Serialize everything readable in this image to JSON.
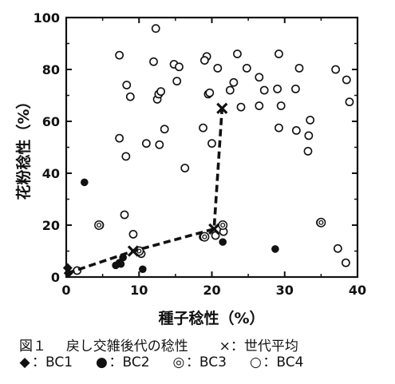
{
  "chart_data": {
    "type": "scatter",
    "title": "",
    "xlabel": "種子稔性（%）",
    "ylabel": "花粉稔性（%）",
    "xlim": [
      0,
      40
    ],
    "ylim": [
      0,
      100
    ],
    "x_ticks": [
      "0",
      "10",
      "20",
      "30",
      "40"
    ],
    "y_ticks": [
      "0",
      "20",
      "40",
      "60",
      "80",
      "100"
    ],
    "grid": false,
    "series": [
      {
        "name": "BC1",
        "marker": "diamond",
        "points": [
          [
            0.2,
            3.5
          ],
          [
            0.3,
            1.5
          ]
        ]
      },
      {
        "name": "BC2",
        "marker": "filled-circle",
        "points": [
          [
            2.5,
            36.5
          ],
          [
            6.8,
            4.5
          ],
          [
            7.3,
            5.5
          ],
          [
            7.5,
            5.0
          ],
          [
            7.8,
            7.5
          ],
          [
            10.5,
            3.0
          ],
          [
            21.5,
            13.5
          ],
          [
            28.7,
            10.8
          ]
        ]
      },
      {
        "name": "BC3",
        "marker": "double-circle",
        "points": [
          [
            4.5,
            20.0
          ],
          [
            10.0,
            10.0
          ],
          [
            19.0,
            15.5
          ],
          [
            21.5,
            20.0
          ],
          [
            35.0,
            21.0
          ]
        ]
      },
      {
        "name": "BC4",
        "marker": "open-circle",
        "points": [
          [
            12.3,
            95.8
          ],
          [
            7.3,
            85.5
          ],
          [
            12.0,
            83.0
          ],
          [
            14.8,
            82.0
          ],
          [
            15.5,
            81.0
          ],
          [
            19.3,
            85.0
          ],
          [
            19.0,
            83.5
          ],
          [
            20.8,
            80.5
          ],
          [
            23.5,
            86.0
          ],
          [
            24.8,
            80.5
          ],
          [
            26.5,
            77.0
          ],
          [
            29.2,
            86.0
          ],
          [
            32.0,
            80.5
          ],
          [
            37.0,
            80.0
          ],
          [
            38.5,
            76.0
          ],
          [
            38.9,
            67.5
          ],
          [
            8.3,
            74.0
          ],
          [
            8.8,
            69.5
          ],
          [
            15.2,
            75.5
          ],
          [
            12.5,
            68.5
          ],
          [
            12.7,
            70.5
          ],
          [
            13.0,
            71.5
          ],
          [
            19.5,
            70.5
          ],
          [
            19.7,
            71.0
          ],
          [
            22.5,
            72.0
          ],
          [
            23.0,
            75.0
          ],
          [
            24.0,
            65.5
          ],
          [
            27.2,
            72.0
          ],
          [
            29.0,
            72.5
          ],
          [
            31.5,
            72.5
          ],
          [
            26.5,
            66.0
          ],
          [
            29.5,
            66.0
          ],
          [
            13.5,
            57.0
          ],
          [
            18.8,
            57.5
          ],
          [
            29.2,
            57.5
          ],
          [
            31.6,
            56.5
          ],
          [
            33.3,
            54.5
          ],
          [
            33.5,
            60.5
          ],
          [
            33.2,
            48.5
          ],
          [
            7.3,
            53.5
          ],
          [
            11.0,
            51.5
          ],
          [
            12.8,
            51.0
          ],
          [
            20.0,
            51.5
          ],
          [
            8.2,
            46.5
          ],
          [
            16.3,
            42.0
          ],
          [
            8.0,
            24.0
          ],
          [
            4.6,
            20.0
          ],
          [
            9.2,
            16.5
          ],
          [
            18.8,
            15.5
          ],
          [
            20.5,
            16.0
          ],
          [
            21.6,
            17.5
          ],
          [
            10.3,
            9.0
          ],
          [
            1.5,
            2.5
          ],
          [
            37.3,
            11.0
          ],
          [
            38.4,
            5.5
          ],
          [
            34.9,
            21.0
          ]
        ]
      },
      {
        "name": "世代平均",
        "marker": "cross",
        "line": "dashed",
        "points": [
          [
            0.2,
            1.5
          ],
          [
            9.2,
            10.0
          ],
          [
            20.3,
            18.5
          ],
          [
            21.4,
            65.0
          ]
        ]
      }
    ]
  },
  "caption": {
    "figure_label": "図１",
    "title": "戻し交雑後代の稔性",
    "mean_legend": "×：世代平均",
    "legend": [
      {
        "symbol": "◆",
        "label": "：BC1"
      },
      {
        "symbol": "●",
        "label": "：BC2"
      },
      {
        "symbol": "◎",
        "label": "：BC3"
      },
      {
        "symbol": "○",
        "label": "：BC4"
      }
    ]
  }
}
